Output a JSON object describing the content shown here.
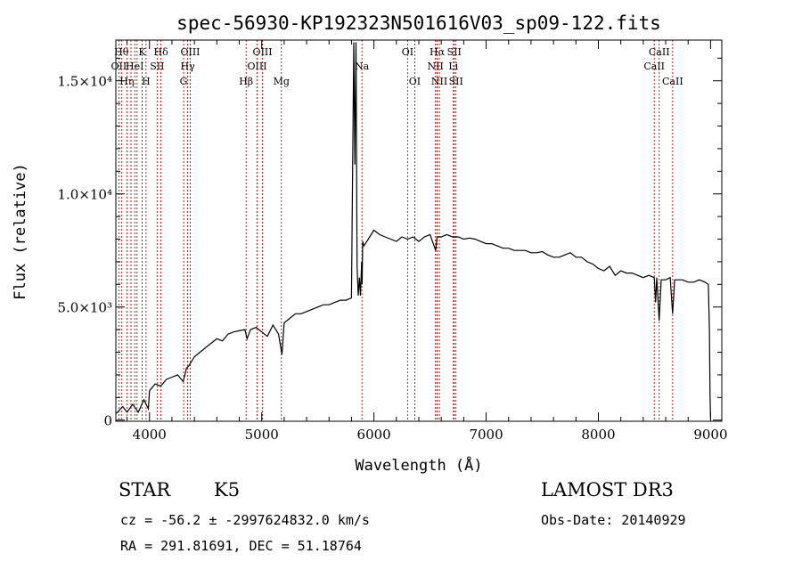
{
  "chart_data": {
    "type": "line",
    "title": "spec-56930-KP192323N501616V03_sp09-122.fits",
    "xlabel": "Wavelength (Å)",
    "ylabel": "Flux (relative)",
    "xlim": [
      3700,
      9100
    ],
    "ylim": [
      -50,
      16800
    ],
    "x_ticks": [
      4000,
      5000,
      6000,
      7000,
      8000,
      9000
    ],
    "y_ticks": [
      {
        "value": 0,
        "label": "0"
      },
      {
        "value": 5000,
        "label": "5.0×10³"
      },
      {
        "value": 10000,
        "label": "1.0×10⁴"
      },
      {
        "value": 15000,
        "label": "1.5×10⁴"
      }
    ],
    "series": [
      {
        "name": "spectrum",
        "x": [
          3705,
          3760,
          3800,
          3850,
          3900,
          3950,
          3990,
          4000,
          4050,
          4100,
          4150,
          4200,
          4250,
          4300,
          4330,
          4350,
          4400,
          4450,
          4500,
          4550,
          4600,
          4650,
          4700,
          4750,
          4800,
          4850,
          4870,
          4900,
          4950,
          5000,
          5050,
          5100,
          5150,
          5180,
          5200,
          5250,
          5300,
          5350,
          5400,
          5450,
          5500,
          5550,
          5600,
          5650,
          5700,
          5750,
          5800,
          5820,
          5830,
          5840,
          5850,
          5860,
          5870,
          5880,
          5890,
          5895,
          5900,
          5910,
          5950,
          6000,
          6050,
          6100,
          6150,
          6200,
          6250,
          6300,
          6350,
          6400,
          6450,
          6500,
          6550,
          6563,
          6600,
          6650,
          6700,
          6750,
          6800,
          6850,
          6900,
          6950,
          7000,
          7050,
          7100,
          7150,
          7200,
          7250,
          7300,
          7350,
          7400,
          7450,
          7500,
          7550,
          7600,
          7650,
          7700,
          7750,
          7800,
          7850,
          7900,
          7950,
          8000,
          8050,
          8100,
          8150,
          8200,
          8250,
          8300,
          8350,
          8400,
          8450,
          8498,
          8510,
          8520,
          8542,
          8560,
          8600,
          8640,
          8662,
          8680,
          8700,
          8750,
          8800,
          8850,
          8900,
          8950,
          8980,
          8990,
          8995,
          9000
        ],
        "y": [
          300,
          600,
          350,
          700,
          350,
          900,
          500,
          1300,
          1600,
          1500,
          1800,
          1900,
          2000,
          1700,
          2300,
          2400,
          2800,
          3000,
          3200,
          3400,
          3600,
          3500,
          3800,
          3900,
          3950,
          4000,
          3600,
          4000,
          4100,
          3900,
          3700,
          4200,
          3800,
          2900,
          4300,
          4500,
          4700,
          4700,
          4800,
          4900,
          5000,
          5100,
          5100,
          5200,
          5300,
          5300,
          5400,
          16700,
          11300,
          16700,
          6800,
          5500,
          6300,
          5500,
          7000,
          6000,
          7900,
          7700,
          8000,
          8400,
          8200,
          8100,
          8000,
          7900,
          8100,
          8000,
          8100,
          7900,
          8100,
          8200,
          7500,
          8100,
          8100,
          8200,
          8100,
          8100,
          8000,
          8050,
          8000,
          7900,
          7800,
          7800,
          7700,
          7600,
          7600,
          7500,
          7500,
          7500,
          7400,
          7400,
          7450,
          7300,
          7200,
          7200,
          7300,
          7400,
          7200,
          7200,
          7000,
          6900,
          6700,
          6600,
          6800,
          6400,
          6600,
          6500,
          6500,
          6400,
          6300,
          6400,
          6300,
          5200,
          6300,
          4400,
          6200,
          6200,
          6300,
          4700,
          6200,
          6200,
          6200,
          6100,
          6100,
          6200,
          6100,
          6000,
          4000,
          1100,
          100
        ]
      }
    ],
    "line_markers": [
      {
        "wavelength": 3727,
        "label": "OII",
        "row": 2
      },
      {
        "wavelength": 3750,
        "label": "Hθ",
        "row": 1
      },
      {
        "wavelength": 3798,
        "label": "Hη",
        "row": 3
      },
      {
        "wavelength": 3835,
        "label": "",
        "row": 0
      },
      {
        "wavelength": 3869,
        "label": "HeI",
        "row": 2
      },
      {
        "wavelength": 3889,
        "label": "",
        "row": 0
      },
      {
        "wavelength": 3934,
        "label": "K",
        "row": 1
      },
      {
        "wavelength": 3969,
        "label": "H",
        "row": 3
      },
      {
        "wavelength": 4068,
        "label": "SII",
        "row": 2
      },
      {
        "wavelength": 4102,
        "label": "Hδ",
        "row": 1
      },
      {
        "wavelength": 4304,
        "label": "G",
        "row": 3
      },
      {
        "wavelength": 4340,
        "label": "Hγ",
        "row": 2
      },
      {
        "wavelength": 4363,
        "label": "OIII",
        "row": 1
      },
      {
        "wavelength": 4861,
        "label": "Hβ",
        "row": 3
      },
      {
        "wavelength": 4959,
        "label": "OIII",
        "row": 2
      },
      {
        "wavelength": 5007,
        "label": "OIII",
        "row": 1
      },
      {
        "wavelength": 5175,
        "label": "Mg",
        "row": 3
      },
      {
        "wavelength": 5893,
        "label": "Na",
        "row": 2
      },
      {
        "wavelength": 6300,
        "label": "OI",
        "row": 1
      },
      {
        "wavelength": 6364,
        "label": "OI",
        "row": 3
      },
      {
        "wavelength": 6548,
        "label": "NII",
        "row": 2
      },
      {
        "wavelength": 6563,
        "label": "Hα",
        "row": 1
      },
      {
        "wavelength": 6583,
        "label": "NII",
        "row": 3
      },
      {
        "wavelength": 6708,
        "label": "Li",
        "row": 2
      },
      {
        "wavelength": 6716,
        "label": "SII",
        "row": 1
      },
      {
        "wavelength": 6731,
        "label": "SII",
        "row": 3
      },
      {
        "wavelength": 8498,
        "label": "CaII",
        "row": 2
      },
      {
        "wavelength": 8542,
        "label": "CaII",
        "row": 1
      },
      {
        "wavelength": 8662,
        "label": "CaII",
        "row": 3
      }
    ],
    "colors": {
      "spectrum": "#000000",
      "line_marker": "#cc0000",
      "axes": "#000000"
    }
  },
  "info": {
    "object_class": "STAR",
    "subclass": "K5",
    "survey": "LAMOST DR3",
    "cz_line": "cz = -56.2 ± -2997624832.0 km/s",
    "obs_date_line": "Obs-Date: 20140929",
    "coords_line": "RA = 291.81691, DEC =  51.18764"
  }
}
